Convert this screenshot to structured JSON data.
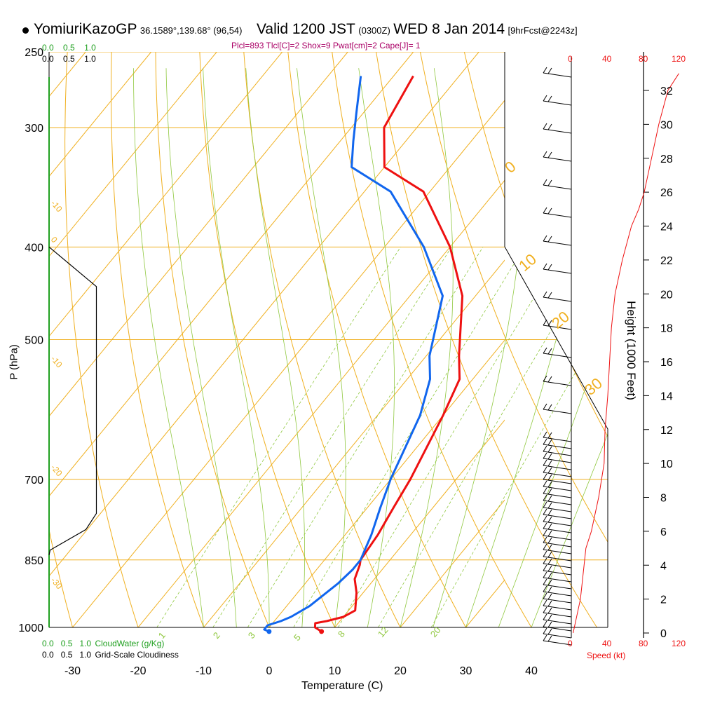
{
  "header": {
    "station": "YomiuriKazoGP",
    "coords": "36.1589°,139.68° (96,54)",
    "valid": "Valid 1200 JST",
    "utc": "(0300Z)",
    "date": "WED 8 Jan 2014",
    "fcst": "[9hrFcst@2243z]",
    "indices": "Plcl=893 Tlcl[C]=2 Shox=9 Pwat[cm]=2 Cape[J]= 1"
  },
  "colors": {
    "temperature": "#ee1111",
    "dewpoint": "#1166ee",
    "isotherm_isobar": "#f0b020",
    "dry_adiabat": "#f0b020",
    "moist_adiabat": "#90c840",
    "mixing_ratio": "#90c840",
    "cloud_water_axis": "#20a020",
    "speed": "#ee1111",
    "indices_text": "#aa0066"
  },
  "left_scales": {
    "cloudwater_ticks": [
      "0.0",
      "0.5",
      "1.0"
    ],
    "cloudiness_ticks": [
      "0.0",
      "0.5",
      "1.0"
    ],
    "cloudwater_label": "CloudWater (g/Kg)",
    "cloudiness_label": "Grid-Scale Cloudiness"
  },
  "right_scales": {
    "speed_ticks": [
      "0",
      "40",
      "80",
      "120"
    ],
    "speed_label": "Speed (kt)",
    "height_ticks": [
      "0",
      "2",
      "4",
      "6",
      "8",
      "10",
      "12",
      "14",
      "16",
      "18",
      "20",
      "22",
      "24",
      "26",
      "28",
      "30",
      "32"
    ],
    "height_values": [
      0,
      2,
      4,
      6,
      8,
      10,
      12,
      14,
      16,
      18,
      20,
      22,
      24,
      26,
      28,
      30,
      32
    ],
    "height_label": "Height (1000 Feet)"
  },
  "chart_data": {
    "type": "line",
    "title": "YomiuriKazoGP Valid 1200 JST WED 8 Jan 2014",
    "xlabel": "Temperature (C)",
    "ylabel": "P (hPa)",
    "x_ticks": [
      -30,
      -20,
      -10,
      0,
      10,
      20,
      30,
      40
    ],
    "y_ticks": [
      250,
      300,
      400,
      500,
      700,
      850,
      1000
    ],
    "x_range_at_bottom": [
      -34,
      43
    ],
    "y_range": [
      1000,
      250
    ],
    "y_scale": "log",
    "skewed": true,
    "grid": true,
    "series": [
      {
        "name": "temperature",
        "points": [
          [
            8.5,
            1010
          ],
          [
            7.0,
            1000
          ],
          [
            6.5,
            990
          ],
          [
            8.0,
            985
          ],
          [
            10.0,
            975
          ],
          [
            11.0,
            960
          ],
          [
            9.0,
            920
          ],
          [
            7.0,
            890
          ],
          [
            6.0,
            860
          ],
          [
            5.5,
            850
          ],
          [
            5.0,
            800
          ],
          [
            4.0,
            750
          ],
          [
            3.0,
            700
          ],
          [
            0.0,
            600
          ],
          [
            -2.0,
            550
          ],
          [
            -5.0,
            520
          ],
          [
            -12.0,
            450
          ],
          [
            -20.0,
            400
          ],
          [
            -31.0,
            350
          ],
          [
            -40.0,
            330
          ],
          [
            -45.0,
            300
          ],
          [
            -47.0,
            265
          ]
        ]
      },
      {
        "name": "dewpoint",
        "points": [
          [
            0.5,
            1010
          ],
          [
            -0.5,
            1005
          ],
          [
            -0.5,
            995
          ],
          [
            1.0,
            985
          ],
          [
            2.0,
            975
          ],
          [
            3.5,
            950
          ],
          [
            5.0,
            900
          ],
          [
            5.5,
            870
          ],
          [
            5.5,
            850
          ],
          [
            4.0,
            800
          ],
          [
            2.0,
            750
          ],
          [
            0.0,
            700
          ],
          [
            -3.5,
            600
          ],
          [
            -6.5,
            550
          ],
          [
            -9.5,
            520
          ],
          [
            -15.0,
            450
          ],
          [
            -24.0,
            400
          ],
          [
            -36.0,
            350
          ],
          [
            -45.0,
            330
          ],
          [
            -48.0,
            310
          ],
          [
            -51.0,
            290
          ],
          [
            -55.0,
            265
          ]
        ]
      }
    ],
    "isotherm_labels": [
      "-10",
      "0",
      "-10",
      "-20",
      "-30",
      "0",
      "10",
      "20",
      "30"
    ],
    "mixing_ratio_labels": [
      "1",
      "2",
      "3",
      "5",
      "8",
      "12",
      "20"
    ],
    "wind_speed_profile": {
      "height_kft": [
        0,
        0.5,
        1,
        2,
        3,
        4,
        5,
        6,
        8,
        10,
        12,
        14,
        16,
        18,
        20,
        22,
        24,
        25,
        26,
        28,
        30,
        32,
        33
      ],
      "speed_kt": [
        2,
        4,
        6,
        10,
        12,
        14,
        16,
        22,
        30,
        36,
        37,
        40,
        42,
        44,
        48,
        56,
        66,
        74,
        80,
        88,
        96,
        106,
        118
      ]
    },
    "cloudiness_profile": {
      "pressure_hpa": [
        400,
        440,
        760,
        790,
        830,
        840
      ],
      "value": [
        0.0,
        0.9,
        0.9,
        0.7,
        0.02,
        0.0
      ]
    }
  }
}
